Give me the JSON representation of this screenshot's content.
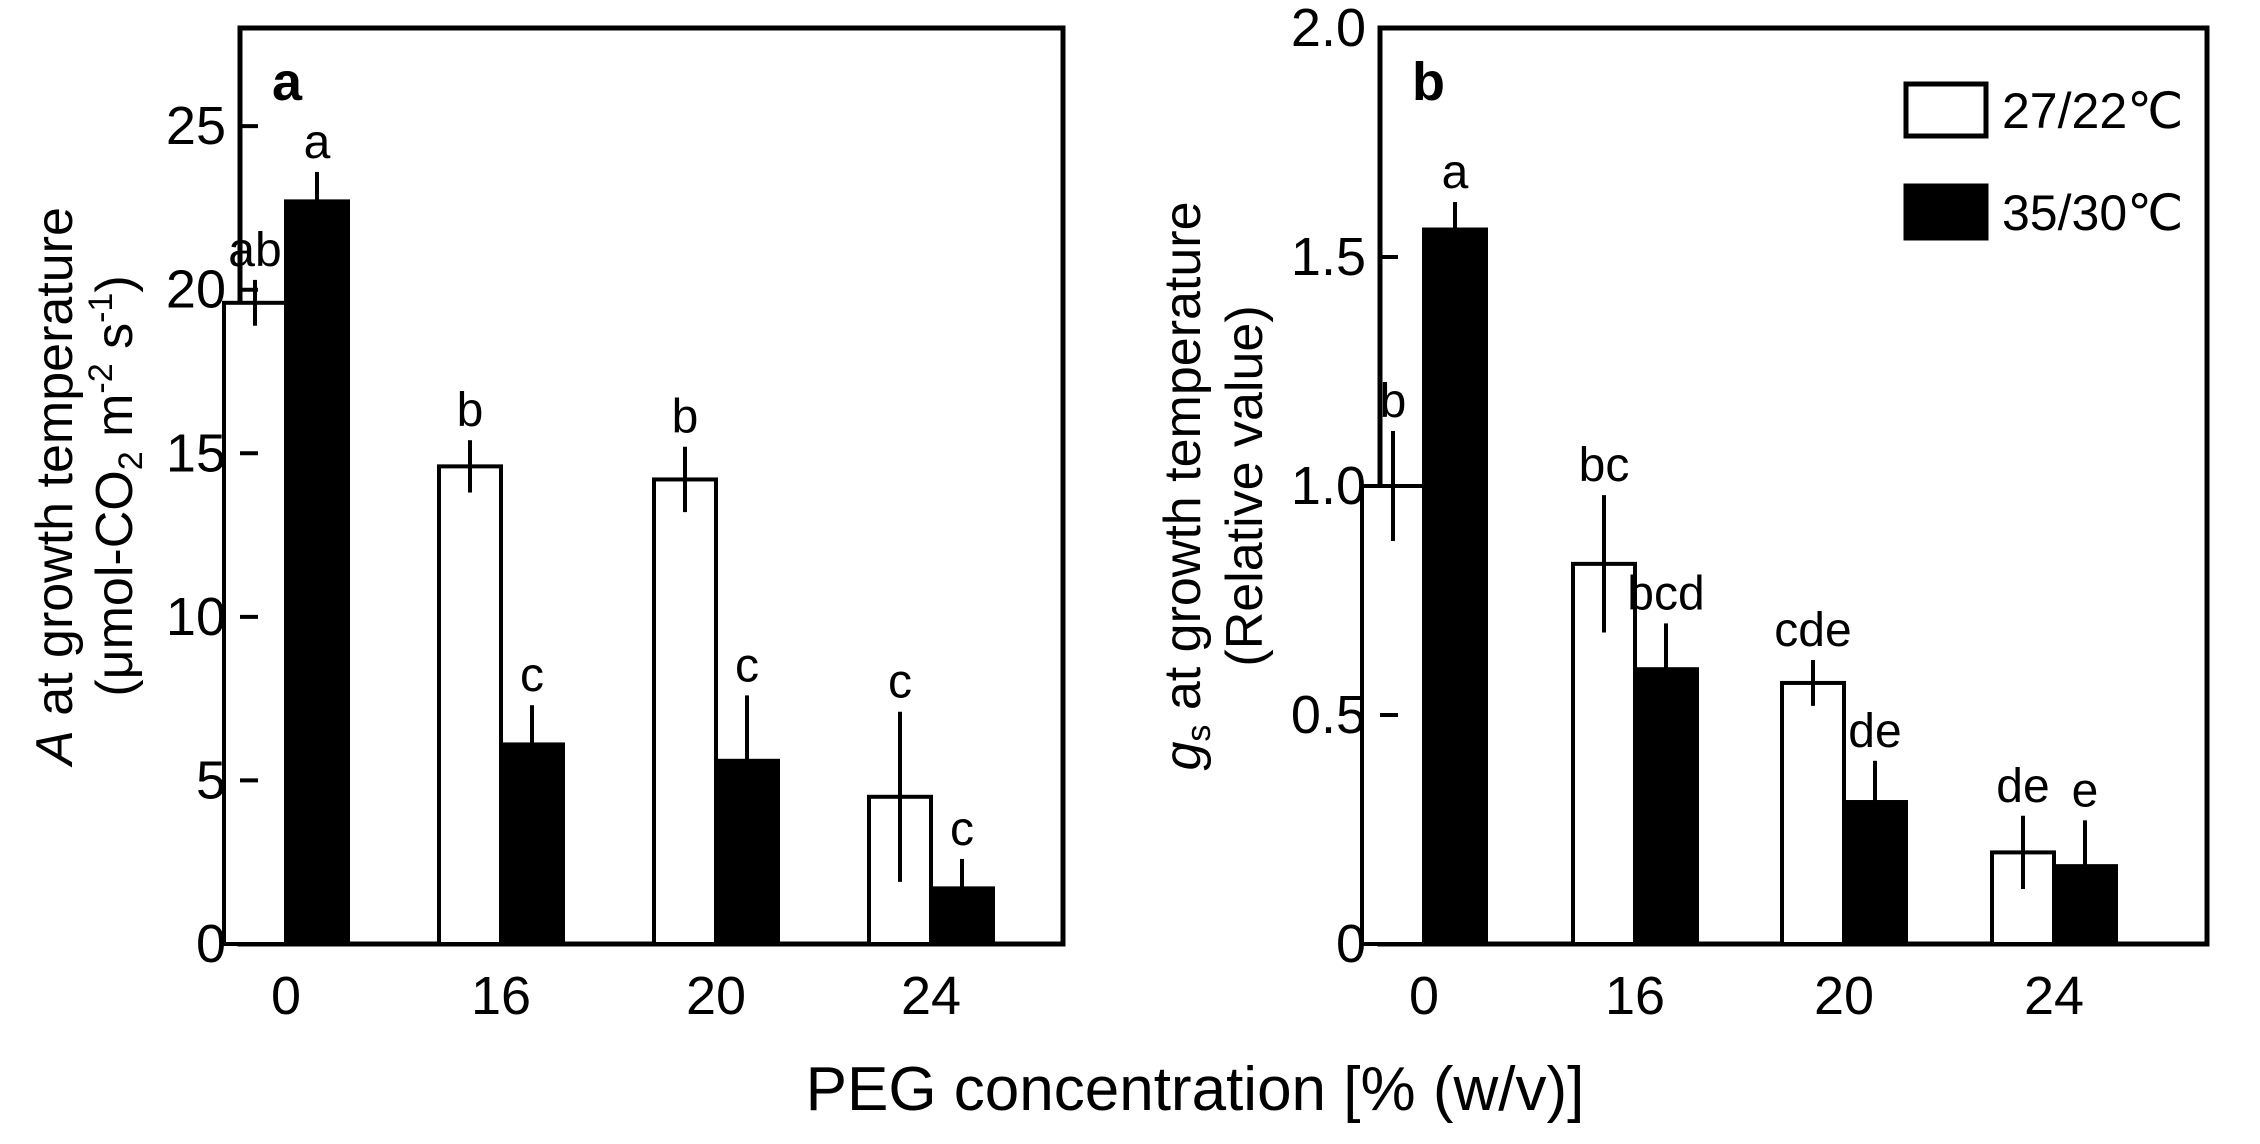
{
  "chart_data": [
    {
      "type": "bar",
      "panel_label": "a",
      "categories": [
        "0",
        "16",
        "20",
        "24"
      ],
      "ylim": [
        0,
        28
      ],
      "yticks": [
        "0",
        "5",
        "10",
        "15",
        "20",
        "25"
      ],
      "ylabel": {
        "italic_prefix": "A",
        "line1_rest": " at growth temperature",
        "line2_pre": "(μmol-CO",
        "line2_sub": "2",
        "line2_mid": " m",
        "line2_sup1": "-2",
        "line2_s": " s",
        "line2_sup2": "-1",
        "line2_end": ")"
      },
      "series": [
        {
          "name": "27/22℃",
          "fill": "#ffffff",
          "values": [
            19.6,
            14.6,
            14.2,
            4.5
          ],
          "errors": [
            0.7,
            0.8,
            1.0,
            2.6
          ],
          "letters": [
            "ab",
            "b",
            "b",
            "c"
          ]
        },
        {
          "name": "35/30℃",
          "fill": "#000000",
          "values": [
            22.7,
            6.1,
            5.6,
            1.7
          ],
          "errors": [
            0.9,
            1.2,
            2.0,
            0.9
          ],
          "letters": [
            "a",
            "c",
            "c",
            "c"
          ]
        }
      ]
    },
    {
      "type": "bar",
      "panel_label": "b",
      "categories": [
        "0",
        "16",
        "20",
        "24"
      ],
      "ylim": [
        0,
        2.0
      ],
      "yticks": [
        "0",
        "0.5",
        "1.0",
        "1.5",
        "2.0"
      ],
      "ylabel": {
        "italic_prefix": "g",
        "italic_sub": "s",
        "line1_rest": " at growth temperature",
        "line2": "(Relative value)"
      },
      "legend": {
        "position": "top-right"
      },
      "series": [
        {
          "name": "27/22℃",
          "fill": "#ffffff",
          "values": [
            1.0,
            0.83,
            0.57,
            0.2
          ],
          "errors": [
            0.12,
            0.15,
            0.05,
            0.08
          ],
          "letters": [
            "b",
            "bc",
            "cde",
            "de"
          ]
        },
        {
          "name": "35/30℃",
          "fill": "#000000",
          "values": [
            1.56,
            0.6,
            0.31,
            0.17
          ],
          "errors": [
            0.06,
            0.1,
            0.09,
            0.1
          ],
          "letters": [
            "a",
            "bcd",
            "de",
            "e"
          ]
        }
      ]
    }
  ],
  "shared_xlabel": "PEG concentration [% (w/v)]"
}
